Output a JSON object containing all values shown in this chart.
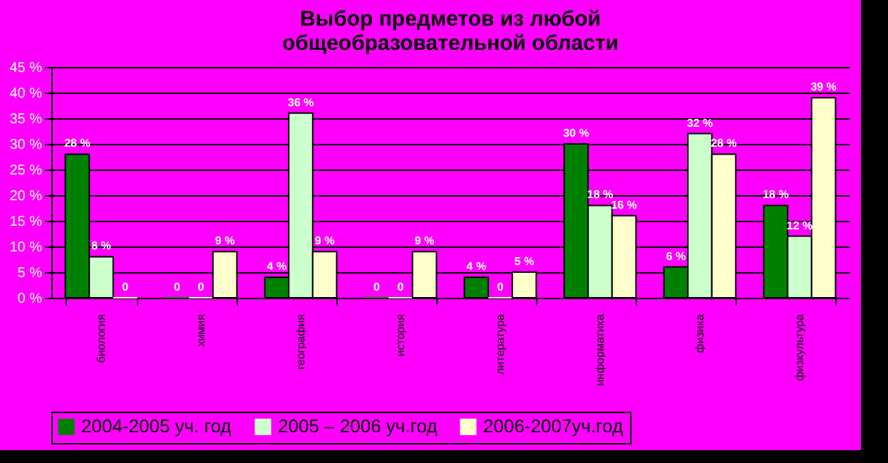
{
  "chart_data": {
    "type": "bar",
    "title": "Выбор предметов из любой\nобщеобразовательной области",
    "categories": [
      "биология",
      "химия",
      "география",
      "история",
      "литература",
      "информатика",
      "физика",
      "физкультура"
    ],
    "series": [
      {
        "name": "2004-2005 уч. год",
        "color": "#008000",
        "values": [
          28,
          0,
          4,
          0,
          4,
          30,
          6,
          18
        ],
        "value_labels": [
          "28 %",
          "0",
          "4 %",
          "0",
          "4 %",
          "30 %",
          "6 %",
          "18 %"
        ]
      },
      {
        "name": "2005 – 2006 уч.год",
        "color": "#ccffcc",
        "values": [
          8,
          0,
          36,
          0,
          0,
          18,
          32,
          12
        ],
        "value_labels": [
          "8 %",
          "0",
          "36 %",
          "0",
          "0",
          "18 %",
          "32 %",
          "12 %"
        ]
      },
      {
        "name": "2006-2007уч.год",
        "color": "#ffffcc",
        "values": [
          0,
          9,
          9,
          9,
          5,
          16,
          28,
          39
        ],
        "value_labels": [
          "0",
          "9 %",
          "9 %",
          "9 %",
          "5 %",
          "16 %",
          "28 %",
          "39 %"
        ]
      }
    ],
    "ylim": [
      0,
      45
    ],
    "yticks": [
      {
        "value": 0,
        "label": "0 %"
      },
      {
        "value": 5,
        "label": "5 %"
      },
      {
        "value": 10,
        "label": "10 %"
      },
      {
        "value": 15,
        "label": "15 %"
      },
      {
        "value": 20,
        "label": "20 %"
      },
      {
        "value": 25,
        "label": "25 %"
      },
      {
        "value": 30,
        "label": "30 %"
      },
      {
        "value": 35,
        "label": "35 %"
      },
      {
        "value": 40,
        "label": "40 %"
      },
      {
        "value": 45,
        "label": "45 %"
      }
    ],
    "grid": "y",
    "legend": "bottom"
  }
}
